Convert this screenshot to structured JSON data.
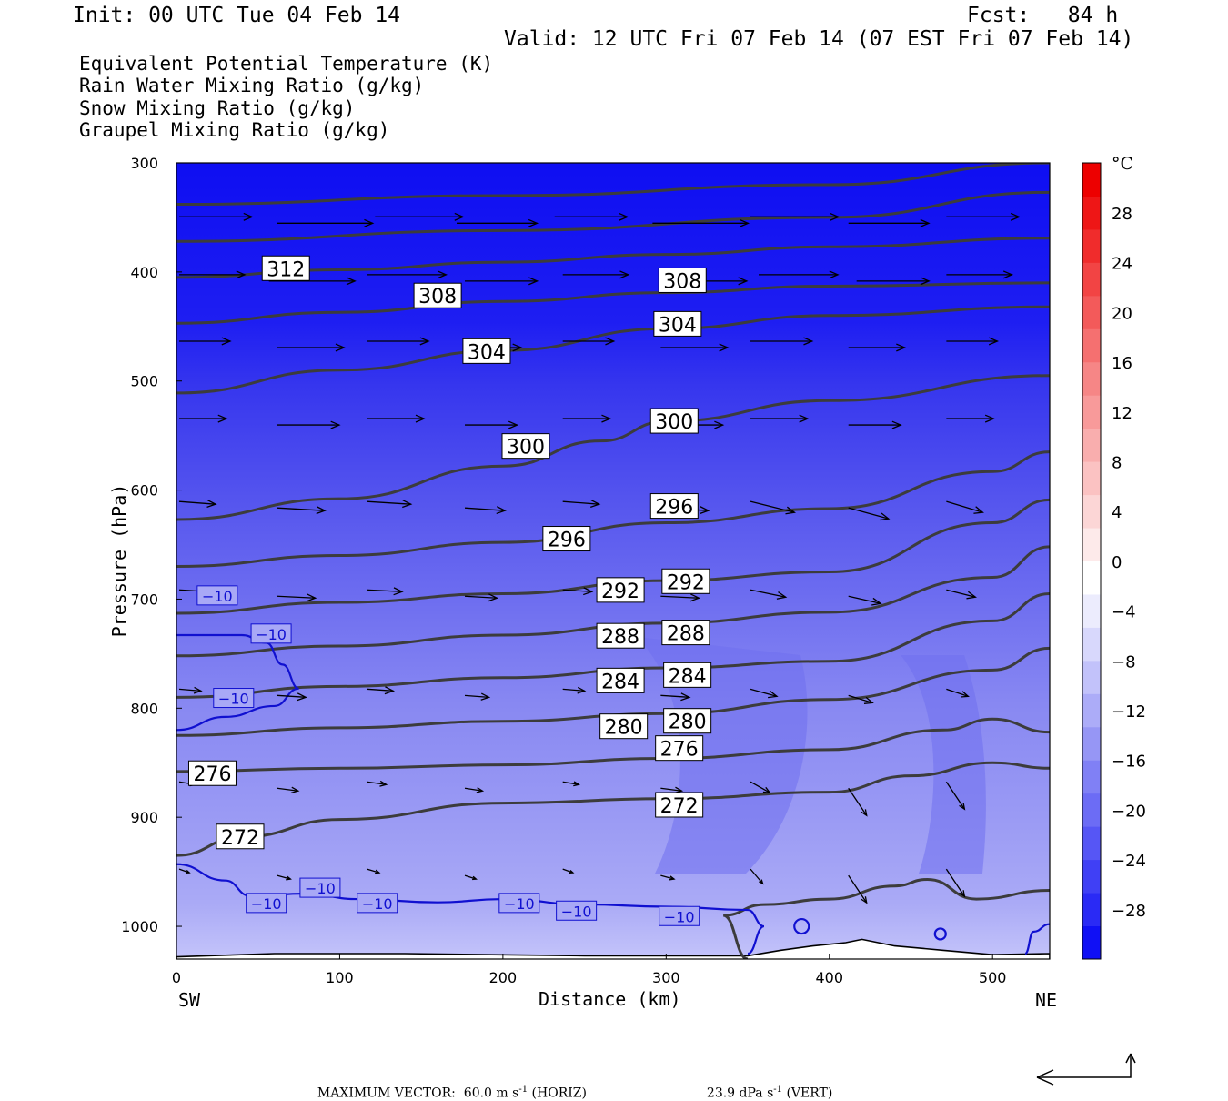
{
  "header": {
    "init": "Init: 00 UTC Tue 04 Feb 14",
    "fcst": "Fcst:   84 h",
    "valid": "Valid: 12 UTC Fri 07 Feb 14 (07 EST Fri 07 Feb 14)"
  },
  "legend": [
    {
      "text": "Equivalent Potential Temperature (K)",
      "color": "#505050"
    },
    {
      "text": "Rain Water Mixing Ratio (g/kg)",
      "color": "#0a7a0a"
    },
    {
      "text": "Snow Mixing Ratio (g/kg)",
      "color": "#f0a070"
    },
    {
      "text": "Graupel Mixing Ratio (g/kg)",
      "color": "#f080f0"
    }
  ],
  "chart_data": {
    "type": "cross-section",
    "xlabel": "Distance (km)",
    "ylabel": "Pressure (hPa)",
    "xlim": [
      0,
      535
    ],
    "ylim": [
      1030,
      300
    ],
    "x_ticks": [
      "0",
      "100",
      "200",
      "300",
      "400",
      "500"
    ],
    "y_ticks": [
      "300",
      "400",
      "500",
      "600",
      "700",
      "800",
      "900",
      "1000"
    ],
    "x_end_labels": {
      "left": "SW",
      "right": "NE"
    },
    "theta_e_contours": [
      {
        "label": "312",
        "label_at": [
          67,
          397
        ],
        "points": [
          [
            0,
            405
          ],
          [
            100,
            398
          ],
          [
            200,
            391
          ],
          [
            300,
            384
          ],
          [
            400,
            377
          ],
          [
            535,
            369
          ]
        ]
      },
      {
        "label": "308",
        "label_at": [
          160,
          422
        ],
        "points": [
          [
            0,
            447
          ],
          [
            100,
            437
          ],
          [
            200,
            427
          ],
          [
            300,
            419
          ],
          [
            400,
            413
          ],
          [
            535,
            410
          ]
        ]
      },
      {
        "label": "308",
        "label_at": [
          310,
          408
        ],
        "points": [
          [
            0,
            447
          ],
          [
            100,
            437
          ],
          [
            200,
            427
          ],
          [
            300,
            419
          ],
          [
            400,
            413
          ],
          [
            535,
            410
          ]
        ]
      },
      {
        "label": "304",
        "label_at": [
          190,
          473
        ],
        "points": [
          [
            0,
            511
          ],
          [
            100,
            490
          ],
          [
            200,
            472
          ],
          [
            300,
            452
          ],
          [
            400,
            440
          ],
          [
            535,
            432
          ]
        ]
      },
      {
        "label": "304",
        "label_at": [
          307,
          448
        ],
        "points": [
          [
            0,
            511
          ],
          [
            100,
            490
          ],
          [
            200,
            472
          ],
          [
            300,
            452
          ],
          [
            400,
            440
          ],
          [
            535,
            432
          ]
        ]
      },
      {
        "label": "300",
        "label_at": [
          214,
          560
        ],
        "points": [
          [
            0,
            627
          ],
          [
            100,
            608
          ],
          [
            200,
            578
          ],
          [
            260,
            555
          ],
          [
            300,
            537
          ],
          [
            400,
            518
          ],
          [
            535,
            495
          ]
        ]
      },
      {
        "label": "300",
        "label_at": [
          305,
          537
        ],
        "points": [
          [
            0,
            627
          ],
          [
            100,
            608
          ],
          [
            200,
            578
          ],
          [
            260,
            555
          ],
          [
            300,
            537
          ],
          [
            400,
            518
          ],
          [
            535,
            495
          ]
        ]
      },
      {
        "label": "296",
        "label_at": [
          239,
          645
        ],
        "points": [
          [
            0,
            670
          ],
          [
            100,
            660
          ],
          [
            200,
            648
          ],
          [
            300,
            630
          ],
          [
            400,
            617
          ],
          [
            500,
            583
          ],
          [
            535,
            565
          ]
        ]
      },
      {
        "label": "296",
        "label_at": [
          305,
          615
        ],
        "points": [
          [
            0,
            670
          ],
          [
            100,
            660
          ],
          [
            200,
            648
          ],
          [
            300,
            630
          ],
          [
            400,
            617
          ],
          [
            500,
            583
          ],
          [
            535,
            565
          ]
        ]
      },
      {
        "label": "292",
        "label_at": [
          272,
          692
        ],
        "points": [
          [
            0,
            713
          ],
          [
            100,
            703
          ],
          [
            200,
            695
          ],
          [
            300,
            683
          ],
          [
            400,
            675
          ],
          [
            500,
            630
          ],
          [
            535,
            609
          ]
        ]
      },
      {
        "label": "292",
        "label_at": [
          312,
          684
        ],
        "points": [
          [
            0,
            713
          ],
          [
            100,
            703
          ],
          [
            200,
            695
          ],
          [
            300,
            683
          ],
          [
            400,
            675
          ],
          [
            500,
            630
          ],
          [
            535,
            609
          ]
        ]
      },
      {
        "label": "288",
        "label_at": [
          272,
          734
        ],
        "points": [
          [
            0,
            752
          ],
          [
            100,
            743
          ],
          [
            200,
            733
          ],
          [
            300,
            722
          ],
          [
            400,
            712
          ],
          [
            500,
            680
          ],
          [
            535,
            652
          ]
        ]
      },
      {
        "label": "288",
        "label_at": [
          312,
          731
        ],
        "points": [
          [
            0,
            752
          ],
          [
            100,
            743
          ],
          [
            200,
            733
          ],
          [
            300,
            722
          ],
          [
            400,
            712
          ],
          [
            500,
            680
          ],
          [
            535,
            652
          ]
        ]
      },
      {
        "label": "284",
        "label_at": [
          272,
          775
        ],
        "points": [
          [
            0,
            790
          ],
          [
            100,
            780
          ],
          [
            200,
            772
          ],
          [
            300,
            763
          ],
          [
            400,
            757
          ],
          [
            500,
            720
          ],
          [
            535,
            695
          ]
        ]
      },
      {
        "label": "284",
        "label_at": [
          313,
          770
        ],
        "points": [
          [
            0,
            790
          ],
          [
            100,
            780
          ],
          [
            200,
            772
          ],
          [
            300,
            763
          ],
          [
            400,
            757
          ],
          [
            500,
            720
          ],
          [
            535,
            695
          ]
        ]
      },
      {
        "label": "280",
        "label_at": [
          274,
          817
        ],
        "points": [
          [
            0,
            825
          ],
          [
            100,
            818
          ],
          [
            200,
            812
          ],
          [
            300,
            805
          ],
          [
            400,
            792
          ],
          [
            500,
            765
          ],
          [
            535,
            745
          ]
        ]
      },
      {
        "label": "280",
        "label_at": [
          313,
          812
        ],
        "points": [
          [
            0,
            825
          ],
          [
            100,
            818
          ],
          [
            200,
            812
          ],
          [
            300,
            805
          ],
          [
            400,
            792
          ],
          [
            500,
            765
          ],
          [
            535,
            745
          ]
        ]
      },
      {
        "label": "276",
        "label_at": [
          22,
          860
        ],
        "points": [
          [
            0,
            858
          ],
          [
            100,
            855
          ],
          [
            200,
            852
          ],
          [
            300,
            846
          ],
          [
            400,
            838
          ],
          [
            470,
            820
          ],
          [
            500,
            810
          ],
          [
            535,
            822
          ]
        ]
      },
      {
        "label": "276",
        "label_at": [
          308,
          837
        ],
        "points": [
          [
            0,
            858
          ],
          [
            100,
            855
          ],
          [
            200,
            852
          ],
          [
            300,
            846
          ],
          [
            400,
            838
          ],
          [
            470,
            820
          ],
          [
            500,
            810
          ],
          [
            535,
            822
          ]
        ]
      },
      {
        "label": "272",
        "label_at": [
          39,
          918
        ],
        "points": [
          [
            0,
            935
          ],
          [
            40,
            918
          ],
          [
            100,
            902
          ],
          [
            200,
            887
          ],
          [
            300,
            883
          ],
          [
            400,
            877
          ],
          [
            450,
            862
          ],
          [
            500,
            850
          ],
          [
            535,
            855
          ]
        ]
      },
      {
        "label": "272",
        "label_at": [
          308,
          889
        ],
        "points": [
          [
            0,
            935
          ],
          [
            40,
            918
          ],
          [
            100,
            902
          ],
          [
            200,
            887
          ],
          [
            300,
            883
          ],
          [
            400,
            877
          ],
          [
            450,
            862
          ],
          [
            500,
            850
          ],
          [
            535,
            855
          ]
        ]
      }
    ],
    "temperature_minus10_label": "−10",
    "colorbar": {
      "unit": "°C",
      "labels": [
        "28",
        "24",
        "20",
        "16",
        "12",
        "8",
        "4",
        "0",
        "−4",
        "−8",
        "−12",
        "−16",
        "−20",
        "−24",
        "−28"
      ],
      "colors": [
        "#1010f5",
        "#2a2af5",
        "#4040f5",
        "#5656f5",
        "#6c6cf5",
        "#8080f5",
        "#9696f5",
        "#acacf8",
        "#c2c2fa",
        "#d8d8fc",
        "#ececfd",
        "#ffffff",
        "#fdeaea",
        "#fcd6d6",
        "#fbc2c2",
        "#f9aeae",
        "#f89a9a",
        "#f68686",
        "#f57070",
        "#f35a5a",
        "#f24444",
        "#f02c2c",
        "#ee1616",
        "#ed0000"
      ]
    }
  },
  "footer": {
    "max_vector_prefix": "MAXIMUM VECTOR:",
    "horiz_value": "60.0 m s",
    "horiz_sup": "-1",
    "horiz_tag": "(HORIZ)",
    "vert_value": "23.9 dPa s",
    "vert_sup": "-1",
    "vert_tag": "(VERT)"
  }
}
